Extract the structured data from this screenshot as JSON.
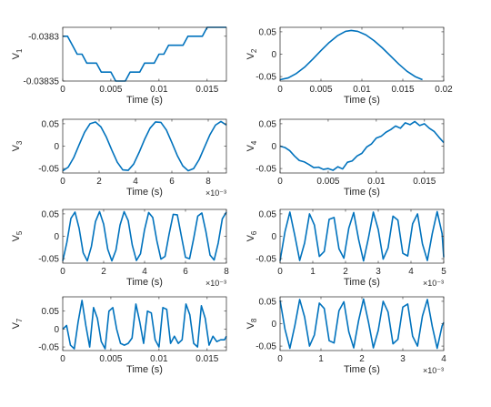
{
  "figure": {
    "line_color": "#0072BD",
    "axis_color": "#262626"
  },
  "chart_data": [
    {
      "type": "line",
      "ylabel": "V",
      "ylabel_sub": "1",
      "xlabel": "Time (s)",
      "xlim": [
        0,
        0.017
      ],
      "ylim": [
        -0.03835,
        -0.03829
      ],
      "xticks": [
        0,
        0.005,
        0.01,
        0.015
      ],
      "xtick_labels": [
        "0",
        "0.005",
        "0.01",
        "0.015"
      ],
      "yticks": [
        -0.03835,
        -0.0383
      ],
      "ytick_labels": [
        "-0.03835",
        "-0.0383"
      ],
      "x_exponent": "",
      "series": [
        {
          "x": [
            0,
            0.0005,
            0.001,
            0.0015,
            0.002,
            0.0025,
            0.003,
            0.0035,
            0.004,
            0.0045,
            0.005,
            0.0055,
            0.006,
            0.0065,
            0.007,
            0.0075,
            0.008,
            0.0085,
            0.009,
            0.0095,
            0.01,
            0.0105,
            0.011,
            0.0115,
            0.012,
            0.0125,
            0.013,
            0.0135,
            0.014,
            0.0145,
            0.015,
            0.0155,
            0.016,
            0.0165,
            0.017
          ],
          "y": [
            -0.0383,
            -0.0383,
            -0.03831,
            -0.03832,
            -0.03832,
            -0.03833,
            -0.03833,
            -0.03833,
            -0.03834,
            -0.03834,
            -0.03834,
            -0.03835,
            -0.03835,
            -0.03835,
            -0.03834,
            -0.03834,
            -0.03834,
            -0.03833,
            -0.03833,
            -0.03833,
            -0.03832,
            -0.03832,
            -0.03831,
            -0.03831,
            -0.03831,
            -0.03831,
            -0.0383,
            -0.0383,
            -0.0383,
            -0.0383,
            -0.03829,
            -0.03829,
            -0.03829,
            -0.03829,
            -0.03829
          ]
        }
      ]
    },
    {
      "type": "line",
      "ylabel": "V",
      "ylabel_sub": "2",
      "xlabel": "Time (s)",
      "xlim": [
        0,
        0.02
      ],
      "ylim": [
        -0.06,
        0.06
      ],
      "xticks": [
        0,
        0.005,
        0.01,
        0.015,
        0.02
      ],
      "xtick_labels": [
        "0",
        "0.005",
        "0.01",
        "0.015",
        "0.02"
      ],
      "yticks": [
        -0.05,
        0,
        0.05
      ],
      "ytick_labels": [
        "-0.05",
        "0",
        "0.05"
      ],
      "x_exponent": "",
      "series": [
        {
          "x": [
            0,
            0.001,
            0.002,
            0.003,
            0.004,
            0.005,
            0.006,
            0.007,
            0.008,
            0.0087,
            0.0095,
            0.0105,
            0.0115,
            0.0125,
            0.0135,
            0.0145,
            0.0155,
            0.0165,
            0.0174
          ],
          "y": [
            -0.057,
            -0.053,
            -0.043,
            -0.029,
            -0.011,
            0.008,
            0.026,
            0.041,
            0.051,
            0.053,
            0.051,
            0.043,
            0.03,
            0.014,
            -0.004,
            -0.022,
            -0.038,
            -0.05,
            -0.057
          ]
        }
      ]
    },
    {
      "type": "line",
      "ylabel": "V",
      "ylabel_sub": "3",
      "xlabel": "Time (s)",
      "xlim": [
        0,
        0.009
      ],
      "ylim": [
        -0.06,
        0.06
      ],
      "xticks": [
        0,
        0.002,
        0.004,
        0.006,
        0.008
      ],
      "xtick_labels": [
        "0",
        "2",
        "4",
        "6",
        "8"
      ],
      "yticks": [
        -0.05,
        0,
        0.05
      ],
      "ytick_labels": [
        "-0.05",
        "0",
        "0.05"
      ],
      "x_exponent": "×10⁻³",
      "series": [
        {
          "x": [
            0,
            0.0003,
            0.0006,
            0.0009,
            0.0012,
            0.0015,
            0.0018,
            0.0021,
            0.0024,
            0.0027,
            0.003,
            0.0033,
            0.0036,
            0.0039,
            0.0042,
            0.0045,
            0.0048,
            0.0051,
            0.0054,
            0.0057,
            0.006,
            0.0063,
            0.0066,
            0.0069,
            0.0072,
            0.0075,
            0.0078,
            0.0081,
            0.0084,
            0.0087,
            0.009
          ],
          "y": [
            -0.055,
            -0.047,
            -0.026,
            0.003,
            0.031,
            0.05,
            0.054,
            0.043,
            0.02,
            -0.009,
            -0.036,
            -0.053,
            -0.054,
            -0.04,
            -0.014,
            0.015,
            0.04,
            0.054,
            0.053,
            0.036,
            0.008,
            -0.021,
            -0.044,
            -0.055,
            -0.05,
            -0.03,
            -0.002,
            0.026,
            0.047,
            0.055,
            0.047
          ]
        }
      ]
    },
    {
      "type": "line",
      "ylabel": "V",
      "ylabel_sub": "4",
      "xlabel": "Time (s)",
      "xlim": [
        0,
        0.017
      ],
      "ylim": [
        -0.06,
        0.06
      ],
      "xticks": [
        0,
        0.005,
        0.01,
        0.015
      ],
      "xtick_labels": [
        "0",
        "0.005",
        "0.01",
        "0.015"
      ],
      "yticks": [
        -0.05,
        0,
        0.05
      ],
      "ytick_labels": [
        "-0.05",
        "0",
        "0.05"
      ],
      "x_exponent": "",
      "series": [
        {
          "x": [
            0,
            0.0005,
            0.001,
            0.0015,
            0.002,
            0.0025,
            0.003,
            0.0035,
            0.004,
            0.0045,
            0.005,
            0.0055,
            0.006,
            0.0065,
            0.007,
            0.0075,
            0.008,
            0.0085,
            0.009,
            0.0095,
            0.01,
            0.0105,
            0.011,
            0.0115,
            0.012,
            0.0125,
            0.013,
            0.0135,
            0.014,
            0.0145,
            0.015,
            0.0155,
            0.016,
            0.0165,
            0.017
          ],
          "y": [
            0.0,
            -0.003,
            -0.01,
            -0.022,
            -0.032,
            -0.035,
            -0.041,
            -0.048,
            -0.047,
            -0.052,
            -0.05,
            -0.054,
            -0.046,
            -0.051,
            -0.036,
            -0.033,
            -0.022,
            -0.016,
            -0.002,
            0.005,
            0.018,
            0.022,
            0.031,
            0.037,
            0.045,
            0.04,
            0.052,
            0.048,
            0.055,
            0.046,
            0.05,
            0.04,
            0.033,
            0.02,
            0.008
          ]
        }
      ]
    },
    {
      "type": "line",
      "ylabel": "V",
      "ylabel_sub": "5",
      "xlabel": "Time (s)",
      "xlim": [
        0,
        0.008
      ],
      "ylim": [
        -0.06,
        0.06
      ],
      "xticks": [
        0,
        0.002,
        0.004,
        0.006,
        0.008
      ],
      "xtick_labels": [
        "0",
        "2",
        "4",
        "6",
        "8"
      ],
      "yticks": [
        -0.05,
        0,
        0.05
      ],
      "ytick_labels": [
        "-0.05",
        "0",
        "0.05"
      ],
      "x_exponent": "×10⁻³",
      "series": [
        {
          "x": [
            0,
            0.0002,
            0.0004,
            0.0006,
            0.0008,
            0.001,
            0.0012,
            0.0014,
            0.0016,
            0.0018,
            0.002,
            0.0022,
            0.0024,
            0.0026,
            0.0028,
            0.003,
            0.0032,
            0.0034,
            0.0036,
            0.0038,
            0.004,
            0.0042,
            0.0044,
            0.0046,
            0.0048,
            0.005,
            0.0052,
            0.0054,
            0.0056,
            0.0058,
            0.006,
            0.0062,
            0.0064,
            0.0066,
            0.0068,
            0.007,
            0.0072,
            0.0074,
            0.0076,
            0.0078,
            0.008
          ],
          "y": [
            -0.055,
            -0.014,
            0.04,
            0.054,
            0.018,
            -0.037,
            -0.055,
            -0.023,
            0.033,
            0.055,
            0.027,
            -0.029,
            -0.055,
            -0.031,
            0.025,
            0.055,
            0.035,
            -0.02,
            -0.054,
            -0.039,
            0.015,
            0.053,
            0.042,
            -0.01,
            -0.051,
            -0.045,
            0.005,
            0.049,
            0.048,
            0.0,
            -0.047,
            -0.05,
            -0.005,
            0.045,
            0.052,
            0.01,
            -0.042,
            -0.053,
            -0.015,
            0.039,
            0.054
          ]
        }
      ]
    },
    {
      "type": "line",
      "ylabel": "V",
      "ylabel_sub": "6",
      "xlabel": "Time (s)",
      "xlim": [
        0,
        0.005
      ],
      "ylim": [
        -0.06,
        0.06
      ],
      "xticks": [
        0,
        0.001,
        0.002,
        0.003,
        0.004,
        0.005
      ],
      "xtick_labels": [
        "0",
        "1",
        "2",
        "3",
        "4",
        "5"
      ],
      "yticks": [
        -0.05,
        0,
        0.05
      ],
      "ytick_labels": [
        "-0.05",
        "0",
        "0.05"
      ],
      "x_exponent": "×10⁻³",
      "series": [
        {
          "x": [
            0,
            0.00015,
            0.0003,
            0.00045,
            0.0006,
            0.00075,
            0.0009,
            0.00105,
            0.0012,
            0.00135,
            0.0015,
            0.00165,
            0.0018,
            0.00195,
            0.0021,
            0.00225,
            0.0024,
            0.00255,
            0.0027,
            0.00285,
            0.003,
            0.00315,
            0.0033,
            0.00345,
            0.0036,
            0.00375,
            0.0039,
            0.00405,
            0.0042,
            0.00435,
            0.0045,
            0.00465,
            0.0048,
            0.00495,
            0.005
          ],
          "y": [
            -0.055,
            0.01,
            0.054,
            0.002,
            -0.054,
            -0.015,
            0.05,
            0.025,
            -0.045,
            -0.034,
            0.038,
            0.042,
            -0.028,
            -0.049,
            0.018,
            0.053,
            -0.007,
            -0.055,
            -0.004,
            0.054,
            0.015,
            -0.051,
            -0.026,
            0.045,
            0.036,
            -0.038,
            -0.044,
            0.028,
            0.05,
            -0.017,
            -0.054,
            0.006,
            0.055,
            0.006,
            -0.047
          ]
        }
      ]
    },
    {
      "type": "line",
      "ylabel": "V",
      "ylabel_sub": "7",
      "xlabel": "Time (s)",
      "xlim": [
        0,
        0.017
      ],
      "ylim": [
        -0.06,
        0.09
      ],
      "xticks": [
        0,
        0.005,
        0.01,
        0.015
      ],
      "xtick_labels": [
        "0",
        "0.005",
        "0.01",
        "0.015"
      ],
      "yticks": [
        -0.05,
        0,
        0.05
      ],
      "ytick_labels": [
        "-0.05",
        "0",
        "0.05"
      ],
      "x_exponent": "",
      "series": [
        {
          "x": [
            0,
            0.0004,
            0.0008,
            0.0012,
            0.0016,
            0.002,
            0.0024,
            0.0028,
            0.0032,
            0.0036,
            0.004,
            0.0044,
            0.0048,
            0.0052,
            0.0056,
            0.006,
            0.0064,
            0.0068,
            0.0072,
            0.0076,
            0.008,
            0.0084,
            0.0088,
            0.0092,
            0.0096,
            0.01,
            0.0104,
            0.0108,
            0.0112,
            0.0116,
            0.012,
            0.0124,
            0.0128,
            0.0132,
            0.0136,
            0.014,
            0.0144,
            0.0148,
            0.0152,
            0.0156,
            0.016,
            0.0164,
            0.0168,
            0.017
          ],
          "y": [
            0.0,
            0.01,
            -0.045,
            -0.055,
            0.02,
            0.08,
            0.01,
            -0.05,
            0.06,
            0.03,
            -0.035,
            -0.055,
            0.05,
            0.06,
            0.0,
            -0.04,
            -0.045,
            -0.04,
            -0.025,
            0.07,
            0.02,
            -0.04,
            0.05,
            0.045,
            -0.03,
            -0.05,
            0.06,
            0.055,
            -0.04,
            -0.02,
            -0.04,
            -0.03,
            0.07,
            0.04,
            -0.04,
            -0.05,
            0.065,
            0.03,
            -0.045,
            -0.02,
            -0.035,
            -0.03,
            -0.03,
            -0.02
          ]
        }
      ]
    },
    {
      "type": "line",
      "ylabel": "V",
      "ylabel_sub": "8",
      "xlabel": "Time (s)",
      "xlim": [
        0,
        0.004
      ],
      "ylim": [
        -0.06,
        0.06
      ],
      "xticks": [
        0,
        0.001,
        0.002,
        0.003,
        0.004
      ],
      "xtick_labels": [
        "0",
        "1",
        "2",
        "3",
        "4"
      ],
      "yticks": [
        -0.05,
        0,
        0.05
      ],
      "ytick_labels": [
        "-0.05",
        "0",
        "0.05"
      ],
      "x_exponent": "×10⁻³",
      "series": [
        {
          "x": [
            0,
            0.00012,
            0.00024,
            0.00036,
            0.00048,
            0.0006,
            0.00072,
            0.00084,
            0.00096,
            0.00108,
            0.0012,
            0.00132,
            0.00144,
            0.00156,
            0.00168,
            0.0018,
            0.00192,
            0.00204,
            0.00216,
            0.00228,
            0.0024,
            0.00252,
            0.00264,
            0.00276,
            0.00288,
            0.003,
            0.00312,
            0.00324,
            0.00336,
            0.00348,
            0.0036,
            0.00372,
            0.00384,
            0.00396,
            0.004
          ],
          "y": [
            0.052,
            -0.012,
            -0.055,
            -0.005,
            0.054,
            0.015,
            -0.05,
            -0.025,
            0.046,
            0.034,
            -0.038,
            -0.043,
            0.029,
            0.049,
            -0.018,
            -0.054,
            0.007,
            0.055,
            0.004,
            -0.054,
            -0.015,
            0.05,
            0.026,
            -0.045,
            -0.035,
            0.037,
            0.044,
            -0.028,
            -0.05,
            0.017,
            0.054,
            -0.006,
            -0.055,
            -0.005,
            0.003
          ]
        }
      ]
    }
  ]
}
